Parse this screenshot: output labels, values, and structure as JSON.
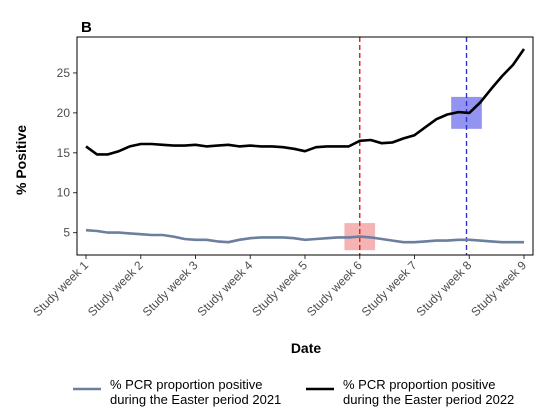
{
  "chart_data": {
    "type": "line",
    "panel_label": "B",
    "xlabel": "Date",
    "ylabel": "% Positive",
    "xlim": [
      1,
      9
    ],
    "ylim": [
      2.2,
      29.5
    ],
    "yticks": [
      5,
      10,
      15,
      20,
      25
    ],
    "xtick_positions": [
      1,
      2,
      3,
      4,
      5,
      6,
      7,
      8,
      9
    ],
    "xtick_labels": [
      "Study week 1",
      "Study week 2",
      "Study week 3",
      "Study week 4",
      "Study week 5",
      "Study week 6",
      "Study week 7",
      "Study week 8",
      "Study week 9"
    ],
    "grid": false,
    "legend_position": "bottom",
    "series": [
      {
        "name": "% PCR proportion positive during the Easter period 2021",
        "legend_lines": [
          "% PCR proportion positive",
          "during the Easter period 2021"
        ],
        "color": "#6b7f9e",
        "x": [
          1.0,
          1.2,
          1.4,
          1.6,
          1.8,
          2.0,
          2.2,
          2.4,
          2.6,
          2.8,
          3.0,
          3.2,
          3.4,
          3.6,
          3.8,
          4.0,
          4.2,
          4.4,
          4.6,
          4.8,
          5.0,
          5.2,
          5.4,
          5.6,
          5.8,
          6.0,
          6.2,
          6.4,
          6.6,
          6.8,
          7.0,
          7.2,
          7.4,
          7.6,
          7.8,
          8.0,
          8.2,
          8.4,
          8.6,
          8.8,
          9.0
        ],
        "values": [
          5.3,
          5.2,
          5.0,
          5.0,
          4.9,
          4.8,
          4.7,
          4.7,
          4.5,
          4.2,
          4.1,
          4.1,
          3.9,
          3.8,
          4.1,
          4.3,
          4.4,
          4.4,
          4.4,
          4.3,
          4.1,
          4.2,
          4.3,
          4.4,
          4.4,
          4.5,
          4.4,
          4.2,
          4.0,
          3.8,
          3.8,
          3.9,
          4.0,
          4.0,
          4.1,
          4.1,
          4.0,
          3.9,
          3.8,
          3.8,
          3.8
        ]
      },
      {
        "name": "% PCR proportion positive during the Easter period 2022",
        "legend_lines": [
          "% PCR proportion positive",
          "during the Easter period 2022"
        ],
        "color": "#000000",
        "x": [
          1.0,
          1.2,
          1.4,
          1.6,
          1.8,
          2.0,
          2.2,
          2.4,
          2.6,
          2.8,
          3.0,
          3.2,
          3.4,
          3.6,
          3.8,
          4.0,
          4.2,
          4.4,
          4.6,
          4.8,
          5.0,
          5.2,
          5.4,
          5.6,
          5.8,
          6.0,
          6.2,
          6.4,
          6.6,
          6.8,
          7.0,
          7.2,
          7.4,
          7.6,
          7.8,
          8.0,
          8.2,
          8.4,
          8.6,
          8.8,
          9.0
        ],
        "values": [
          15.8,
          14.8,
          14.8,
          15.2,
          15.8,
          16.1,
          16.1,
          16.0,
          15.9,
          15.9,
          16.0,
          15.8,
          15.9,
          16.0,
          15.8,
          15.9,
          15.8,
          15.8,
          15.7,
          15.5,
          15.2,
          15.7,
          15.8,
          15.8,
          15.8,
          16.5,
          16.6,
          16.2,
          16.3,
          16.8,
          17.2,
          18.2,
          19.2,
          19.8,
          20.1,
          20.0,
          21.3,
          23.0,
          24.6,
          26.0,
          28.0
        ]
      }
    ],
    "vlines": [
      {
        "x": 6.0,
        "color": "#e41a1c",
        "style": "dashed"
      },
      {
        "x": 7.95,
        "color": "#3333cc",
        "style": "dashed"
      }
    ],
    "highlights": [
      {
        "x_center": 6.0,
        "y_center": 4.5,
        "x_halfwidth": 0.28,
        "y_halfwidth": 1.7,
        "color": "#f4a6a6"
      },
      {
        "x_center": 7.95,
        "y_center": 20.0,
        "x_halfwidth": 0.28,
        "y_halfwidth": 2.0,
        "color": "#8080ee"
      }
    ]
  }
}
